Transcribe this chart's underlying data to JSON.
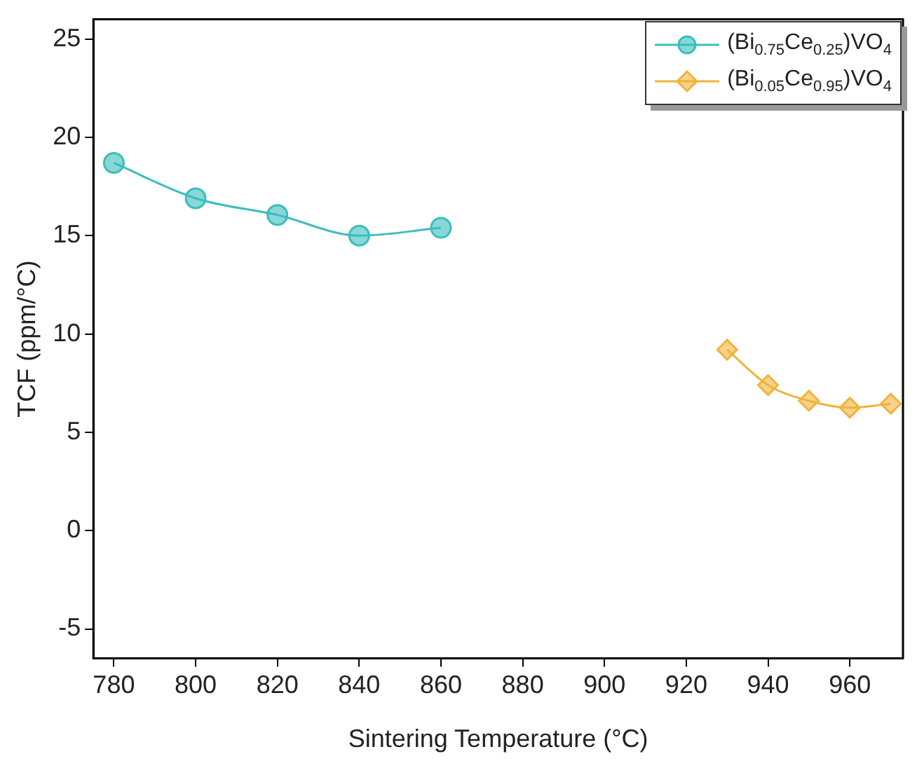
{
  "chart_data": {
    "type": "line",
    "xlabel": "Sintering Temperature (°C)",
    "ylabel": "TCF (ppm/°C)",
    "series": [
      {
        "name": "(Bi$_{0.75}$Ce$_{0.25}$)VO$_{4}$",
        "color": "#3bbdbd",
        "marker": "circle",
        "x": [
          780,
          800,
          820,
          840,
          860
        ],
        "values": [
          18.7,
          16.9,
          16.05,
          15.0,
          15.4
        ]
      },
      {
        "name": "(Bi$_{0.05}$Ce$_{0.95}$)VO$_{4}$",
        "color": "#f0b43c",
        "marker": "diamond",
        "x": [
          930,
          940,
          950,
          960,
          970
        ],
        "values": [
          9.2,
          7.4,
          6.6,
          6.25,
          6.45
        ]
      }
    ],
    "xlim": [
      775,
      973
    ],
    "xticks": [
      780,
      800,
      820,
      840,
      860,
      880,
      900,
      920,
      940,
      960
    ],
    "ylim": [
      -6.5,
      26
    ],
    "yticks": [
      -5,
      0,
      5,
      10,
      15,
      20,
      25
    ],
    "grid": false,
    "legend": "top right",
    "line_style": "solid"
  }
}
